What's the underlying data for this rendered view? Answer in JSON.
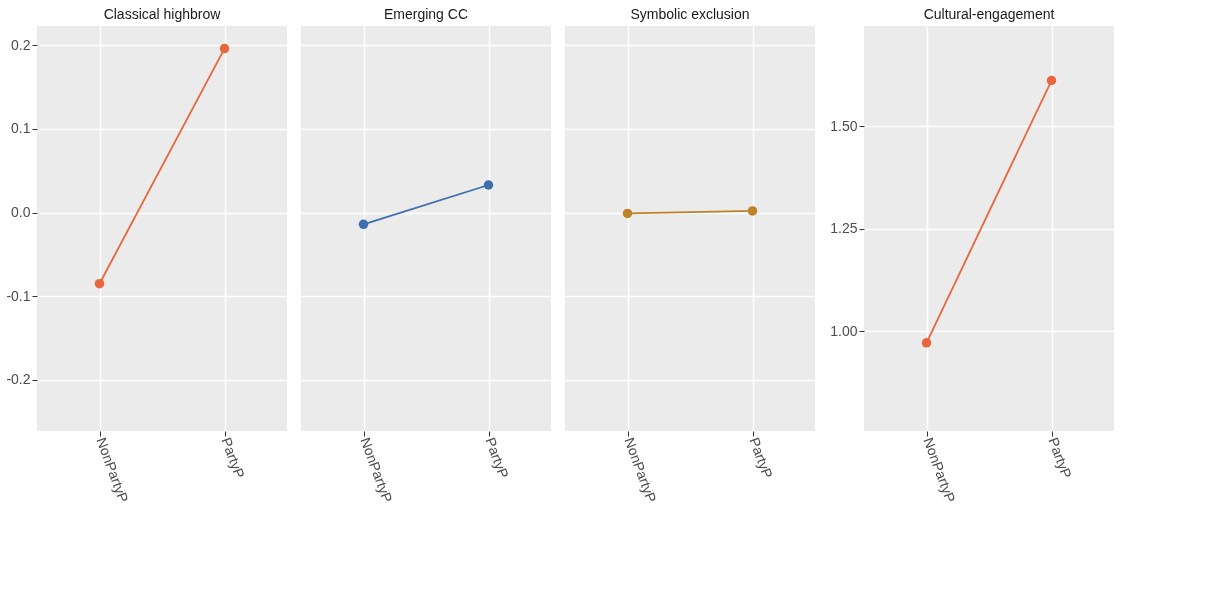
{
  "chart_data": [
    {
      "type": "line",
      "title": "Classical highbrow",
      "categories": [
        "NonPartyP",
        "PartyP"
      ],
      "series": [
        {
          "color": "#e8653d",
          "values": [
            -0.085,
            0.196
          ]
        }
      ],
      "ylim": [
        -0.261,
        0.223
      ],
      "yticks": [
        -0.2,
        -0.1,
        {
          "value": 0,
          "label": "0.0"
        },
        0.1,
        0.2
      ],
      "grid": true,
      "marker": "circle"
    },
    {
      "type": "line",
      "title": "Emerging CC",
      "categories": [
        "NonPartyP",
        "PartyP"
      ],
      "series": [
        {
          "color": "#3e6db0",
          "values": [
            -0.014,
            0.033
          ]
        }
      ],
      "ylim": [
        -0.261,
        0.223
      ],
      "yticks": [
        -0.2,
        -0.1,
        0,
        0.1,
        0.2
      ],
      "grid": true,
      "marker": "circle",
      "tick_labels": "x"
    },
    {
      "type": "line",
      "title": "Symbolic exclusion",
      "categories": [
        "NonPartyP",
        "PartyP"
      ],
      "series": [
        {
          "color": "#c08228",
          "values": [
            -0.001,
            0.002
          ]
        }
      ],
      "ylim": [
        -0.261,
        0.223
      ],
      "yticks": [
        -0.2,
        -0.1,
        0,
        0.1,
        0.2
      ],
      "grid": true,
      "marker": "circle",
      "tick_labels": "x"
    },
    {
      "type": "line",
      "title": "Cultural-engagement",
      "categories": [
        "NonPartyP",
        "PartyP"
      ],
      "series": [
        {
          "color": "#e8653d",
          "values": [
            0.972,
            1.612
          ]
        }
      ],
      "ylim": [
        0.757,
        1.745
      ],
      "yticks": [
        {
          "value": 1.0,
          "label": "1.00"
        },
        {
          "value": 1.25,
          "label": "1.25"
        },
        {
          "value": 1.5,
          "label": "1.50"
        }
      ],
      "grid": true,
      "marker": "circle"
    }
  ]
}
